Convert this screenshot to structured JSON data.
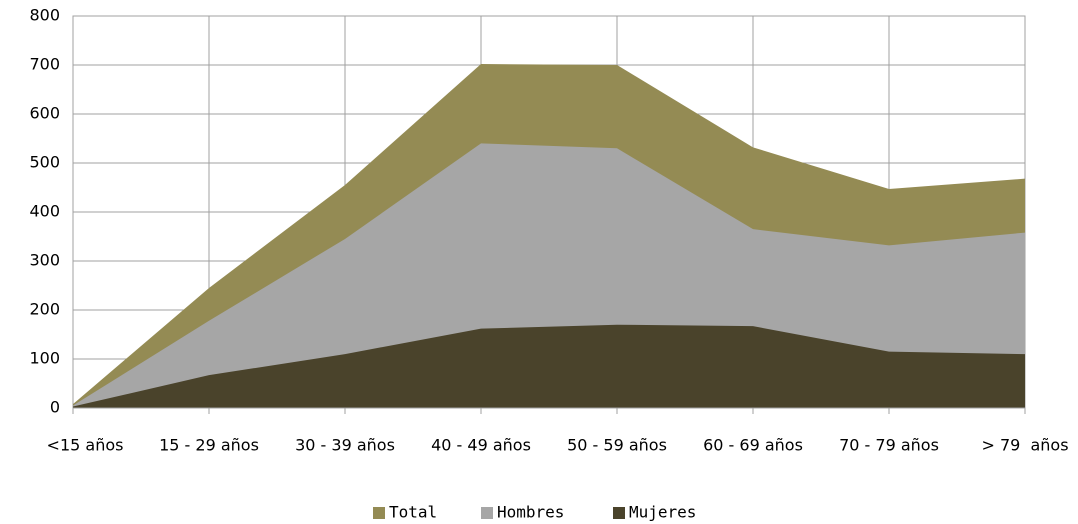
{
  "chart_data": {
    "type": "area",
    "categories": [
      "<15 años",
      "15 - 29 años",
      "30 - 39 años",
      "40 - 49 años",
      "50 - 59 años",
      "60 - 69 años",
      "70 - 79 años",
      "> 79  años"
    ],
    "series": [
      {
        "name": "Total",
        "color": "#948b54",
        "values": [
          8,
          245,
          455,
          702,
          700,
          532,
          447,
          468
        ]
      },
      {
        "name": "Hombres",
        "color": "#a6a6a6",
        "values": [
          5,
          178,
          345,
          540,
          530,
          365,
          332,
          358
        ]
      },
      {
        "name": "Mujeres",
        "color": "#4a432b",
        "values": [
          3,
          67,
          110,
          162,
          170,
          167,
          115,
          110
        ]
      }
    ],
    "ylim": [
      0,
      800
    ],
    "yticks": [
      0,
      100,
      200,
      300,
      400,
      500,
      600,
      700,
      800
    ],
    "grid": true,
    "legend": "bottom"
  }
}
